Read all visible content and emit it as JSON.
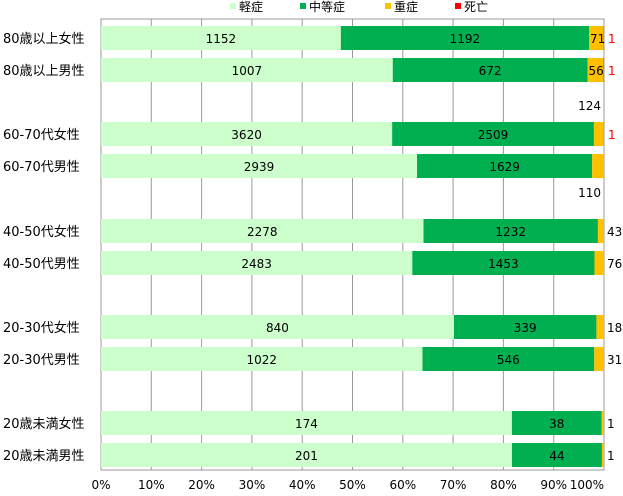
{
  "chart_data": {
    "type": "bar",
    "orientation": "horizontal",
    "stacked": "percent",
    "legend": {
      "position": "top",
      "entries": [
        "軽症",
        "中等症",
        "重症",
        "死亡"
      ]
    },
    "colors": {
      "軽症": "#ccffcc",
      "中等症": "#00b050",
      "重症": "#ffc000",
      "死亡": "#ff0000"
    },
    "categories": [
      "80歳以上女性",
      "80歳以上男性",
      "60-70代女性",
      "60-70代男性",
      "40-50代女性",
      "40-50代男性",
      "20-30代女性",
      "20-30代男性",
      "20歳未満女性",
      "20歳未満男性"
    ],
    "series": [
      {
        "name": "軽症",
        "values": [
          1152,
          1007,
          3620,
          2939,
          2278,
          2483,
          840,
          1022,
          174,
          201
        ]
      },
      {
        "name": "中等症",
        "values": [
          1192,
          672,
          2509,
          1629,
          1232,
          1453,
          339,
          546,
          38,
          44
        ]
      },
      {
        "name": "重症",
        "values": [
          71,
          56,
          124,
          110,
          43,
          76,
          18,
          31,
          1,
          1
        ]
      },
      {
        "name": "死亡",
        "values": [
          1,
          1,
          1,
          0,
          0,
          0,
          0,
          0,
          0,
          0
        ]
      }
    ],
    "x_ticks": [
      "0%",
      "10%",
      "20%",
      "30%",
      "40%",
      "50%",
      "60%",
      "70%",
      "80%",
      "90%",
      "100%"
    ],
    "xlim": [
      0,
      100
    ],
    "grid": "vertical"
  }
}
